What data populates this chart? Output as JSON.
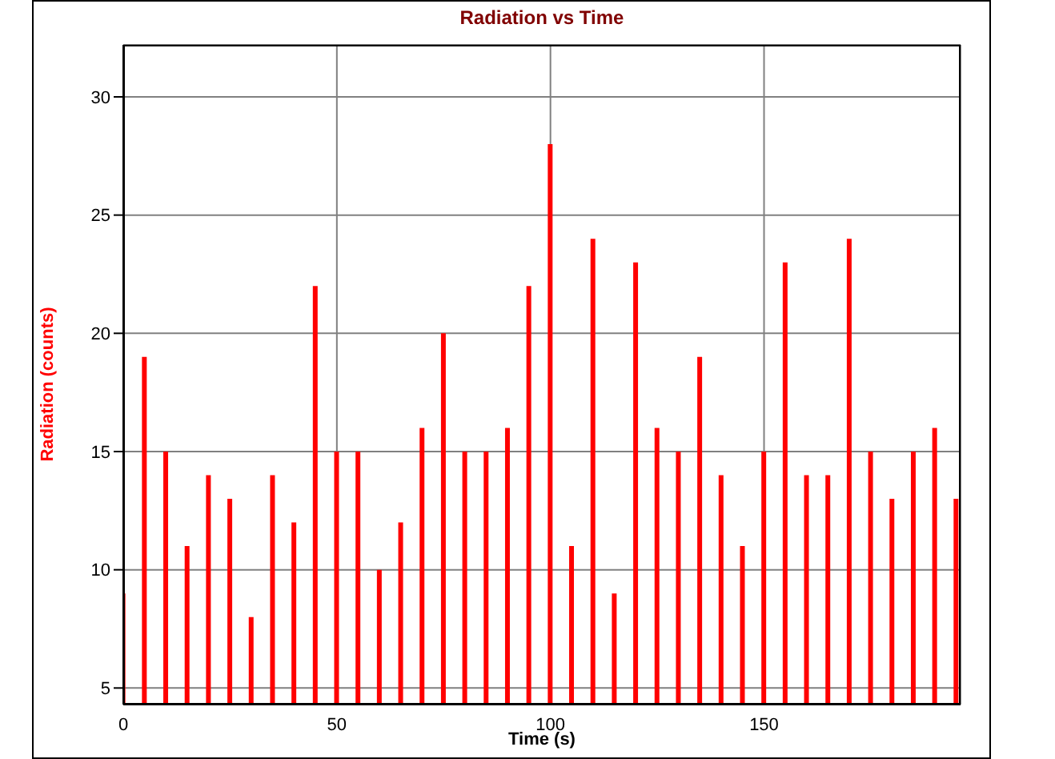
{
  "chart_data": {
    "type": "bar",
    "title": "Radiation vs Time",
    "xlabel": "Time (s)",
    "ylabel": "Radiation (counts)",
    "x": [
      0,
      5,
      10,
      15,
      20,
      25,
      30,
      35,
      40,
      45,
      50,
      55,
      60,
      65,
      70,
      75,
      80,
      85,
      90,
      95,
      100,
      105,
      110,
      115,
      120,
      125,
      130,
      135,
      140,
      145,
      150,
      155,
      160,
      165,
      170,
      175,
      180,
      185,
      190,
      195
    ],
    "series": [
      {
        "color": "#ff0000",
        "values": [
          9,
          19,
          15,
          11,
          14,
          13,
          8,
          14,
          12,
          22,
          15,
          15,
          10,
          12,
          16,
          20,
          15,
          15,
          16,
          22,
          28,
          11,
          24,
          9,
          23,
          16,
          15,
          19,
          14,
          11,
          15,
          23,
          14,
          14,
          24,
          15,
          13,
          15,
          16,
          13
        ]
      }
    ],
    "xlim": [
      0,
      196
    ],
    "xticks": [
      0,
      50,
      100,
      150
    ],
    "ylim": [
      4.3,
      32.2
    ],
    "yticks": [
      5,
      10,
      15,
      20,
      25,
      30
    ],
    "grid": true
  }
}
